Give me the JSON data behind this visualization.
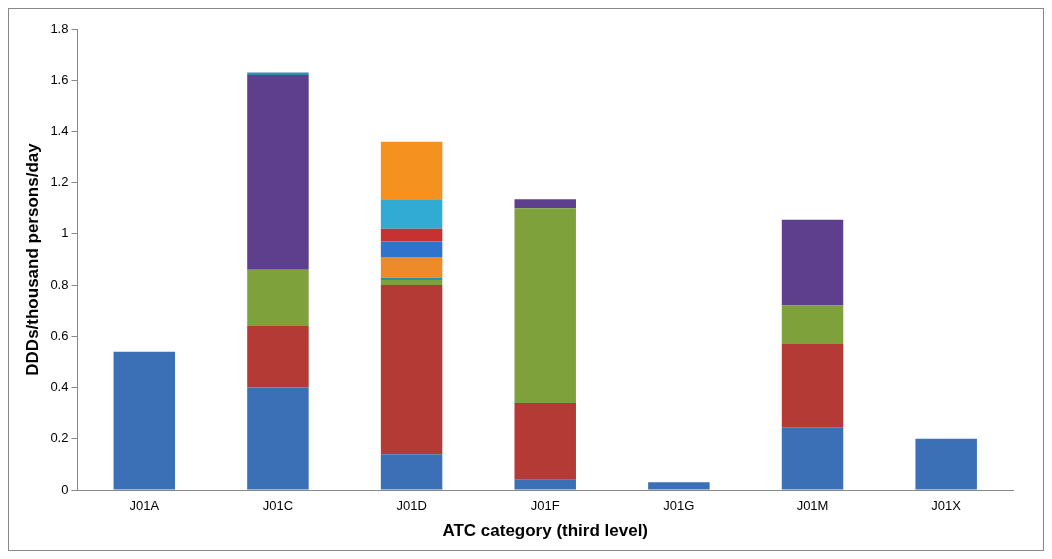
{
  "chart_data": {
    "type": "bar",
    "stacked": true,
    "xlabel": "ATC category (third level)",
    "ylabel": "DDDs/thousand persons/day",
    "categories": [
      "J01A",
      "J01C",
      "J01D",
      "J01F",
      "J01G",
      "J01M",
      "J01X"
    ],
    "series": [
      {
        "color": "#3b6fb6",
        "values": [
          0.54,
          0.4,
          0.14,
          0.04,
          0.03,
          0.245,
          0.2
        ]
      },
      {
        "color": "#b43a36",
        "values": [
          0,
          0.24,
          0.66,
          0.3,
          0,
          0.325,
          0
        ]
      },
      {
        "color": "#7fa13c",
        "values": [
          0,
          0.22,
          0.02,
          0.76,
          0,
          0.15,
          0
        ]
      },
      {
        "color": "#5e3f8e",
        "values": [
          0,
          0.76,
          0,
          0.035,
          0,
          0.335,
          0
        ]
      },
      {
        "color": "#2f8fa8",
        "values": [
          0,
          0.01,
          0.01,
          0,
          0,
          0,
          0
        ]
      },
      {
        "color": "#ef8a2a",
        "values": [
          0,
          0,
          0.08,
          0,
          0,
          0,
          0
        ]
      },
      {
        "color": "#2f74cc",
        "values": [
          0,
          0,
          0.06,
          0,
          0,
          0,
          0
        ]
      },
      {
        "color": "#c5322f",
        "values": [
          0,
          0,
          0.05,
          0,
          0,
          0,
          0
        ]
      },
      {
        "color": "#31aad4",
        "values": [
          0,
          0,
          0.115,
          0,
          0,
          0,
          0
        ]
      },
      {
        "color": "#f5911f",
        "values": [
          0,
          0,
          0.225,
          0,
          0,
          0,
          0
        ]
      }
    ],
    "ylim": [
      0,
      1.8
    ],
    "yticks": [
      0,
      0.2,
      0.4,
      0.6,
      0.8,
      1,
      1.2,
      1.4,
      1.6,
      1.8
    ],
    "grid": false,
    "legend": false
  }
}
